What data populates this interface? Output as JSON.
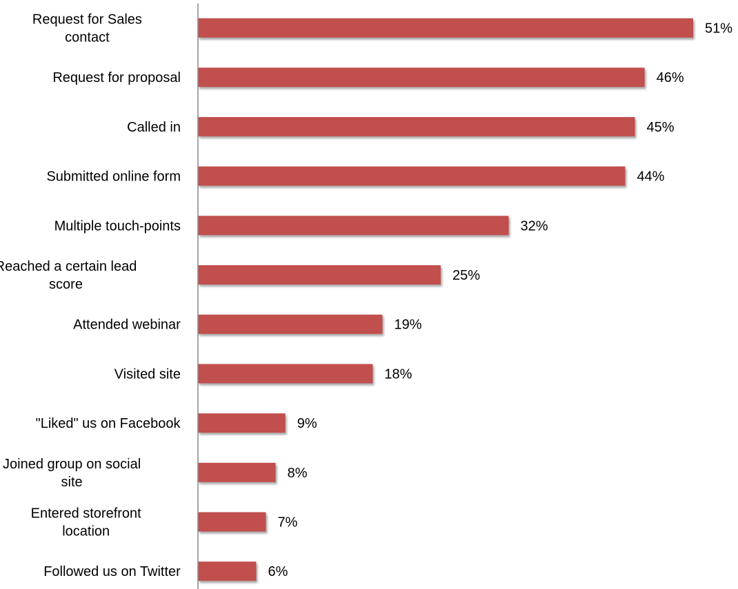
{
  "chart_data": {
    "type": "bar",
    "orientation": "horizontal",
    "categories": [
      "Request for Sales contact",
      "Request for proposal",
      "Called in",
      "Submitted online form",
      "Multiple touch-points",
      "Reached a certain lead score",
      "Attended webinar",
      "Visited site",
      "\"Liked\" us on Facebook",
      "Joined group on social site",
      "Entered storefront location",
      "Followed us on Twitter"
    ],
    "category_lines": [
      [
        "Request for Sales",
        "contact"
      ],
      [
        "Request for proposal"
      ],
      [
        "Called in"
      ],
      [
        "Submitted online form"
      ],
      [
        "Multiple touch-points"
      ],
      [
        "Reached a certain lead",
        "score"
      ],
      [
        "Attended webinar"
      ],
      [
        "Visited site"
      ],
      [
        "\"Liked\" us on Facebook"
      ],
      [
        "Joined group on social",
        "site"
      ],
      [
        "Entered storefront",
        "location"
      ],
      [
        "Followed us on Twitter"
      ]
    ],
    "values": [
      51,
      46,
      45,
      44,
      32,
      25,
      19,
      18,
      9,
      8,
      7,
      6
    ],
    "value_labels": [
      "51%",
      "46%",
      "45%",
      "44%",
      "32%",
      "25%",
      "19%",
      "18%",
      "9%",
      "8%",
      "7%",
      "6%"
    ],
    "unit": "%",
    "xlim": [
      0,
      51
    ],
    "grid": false,
    "legend": "none",
    "bar_color": "#c0504d",
    "title": "",
    "xlabel": "",
    "ylabel": ""
  }
}
